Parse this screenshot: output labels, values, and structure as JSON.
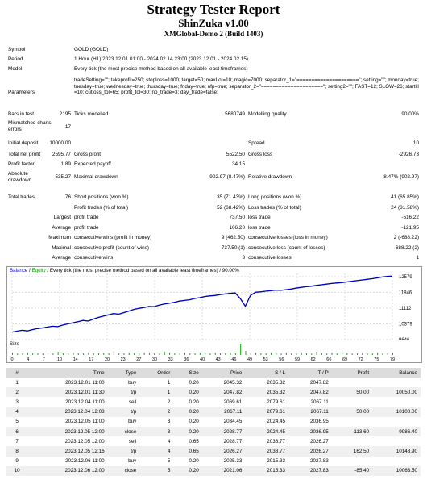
{
  "header": {
    "title": "Strategy Tester Report",
    "expert": "ShinZuka v1.00",
    "server": "XMGlobal-Demo 2 (Build 1403)"
  },
  "settings": [
    {
      "label": "Symbol",
      "value": "GOLD (GOLD)"
    },
    {
      "label": "Period",
      "value": "1 Hour (H1) 2023.12.01 01:00 - 2024.02.14 23:00 (2023.12.01 - 2024.02.15)"
    },
    {
      "label": "Model",
      "value": "Every tick (the most precise method based on all available least timeframes)"
    }
  ],
  "parameters": {
    "label": "Parameters",
    "text": "tradeSetting=\"\"; takeprofit=250; stoploss=1000; target=50; maxLot=10; magic=7000; separator_1=\"=====================\"; setting=\"\"; monday=true; tuesday=true; wednesday=true; thursday=true; friday=true; nfp=true; separator_2=\"=====================\"; setting2=\"\"; FAST=12; SLOW=26; startH=10; cutloss_tol=65; profit_tol=30; no_trade=3; day_trade=false;"
  },
  "stats": {
    "bars_label": "Bars in test",
    "bars_value": "2195",
    "ticks_label": "Ticks modelled",
    "ticks_value": "5680749",
    "quality_label": "Modelling quality",
    "quality_value": "90.00%",
    "mismatch_label": "Mismatched charts errors",
    "mismatch_value": "17",
    "deposit_label": "Initial deposit",
    "deposit_value": "10000.00",
    "spread_label": "Spread",
    "spread_value": "10",
    "net_label": "Total net profit",
    "net_value": "2595.77",
    "gp_label": "Gross profit",
    "gp_value": "5522.50",
    "gl_label": "Gross loss",
    "gl_value": "-2926.73",
    "pf_label": "Profit factor",
    "pf_value": "1.89",
    "ep_label": "Expected payoff",
    "ep_value": "34.15",
    "ad_label": "Absolute drawdown",
    "ad_value": "535.27",
    "md_label": "Maximal drawdown",
    "md_value": "902.97 (8.47%)",
    "rd_label": "Relative drawdown",
    "rd_value": "8.47% (902.97)",
    "tt_label": "Total trades",
    "tt_value": "76",
    "sp_label": "Short positions (won %)",
    "sp_value": "35 (71.43%)",
    "lp_label": "Long positions (won %)",
    "lp_value": "41 (65.85%)",
    "pt_label": "Profit trades (% of total)",
    "pt_value": "52 (68.42%)",
    "lt_label": "Loss trades (% of total)",
    "lt_value": "24 (31.58%)",
    "largest": "Largest",
    "average": "Average",
    "maximum": "Maximum",
    "maximal": "Maximal",
    "lpt_label": "profit trade",
    "lpt_value": "737.50",
    "llt_label": "loss trade",
    "llt_value": "-516.22",
    "apt_label": "profit trade",
    "apt_value": "106.20",
    "alt_label": "loss trade",
    "alt_value": "-121.95",
    "mcw_label": "consecutive wins (profit in money)",
    "mcw_value": "9 (462.50)",
    "mcl_label": "consecutive losses (loss in money)",
    "mcl_value": "2 (-688.22)",
    "mcp_label": "consecutive profit (count of wins)",
    "mcp_value": "737.50 (1)",
    "mcls_label": "consecutive loss (count of losses)",
    "mcls_value": "-688.22 (2)",
    "acw_label": "consecutive wins",
    "acw_value": "3",
    "acl_label": "consecutive losses",
    "acl_value": "1"
  },
  "chart": {
    "legend_balance": "Balance",
    "legend_sep": " / ",
    "legend_equity": "Equity",
    "legend_rest": " / Every tick (the most precise method based on all available least timeframes) / 90.00%",
    "y_ticks": [
      "12579",
      "11846",
      "11112",
      "10379",
      "9646"
    ],
    "size_label": "Size",
    "x_ticks": [
      "0",
      "4",
      "7",
      "10",
      "14",
      "17",
      "20",
      "23",
      "27",
      "30",
      "33",
      "36",
      "40",
      "43",
      "46",
      "49",
      "53",
      "56",
      "59",
      "62",
      "66",
      "69",
      "72",
      "75",
      "79"
    ],
    "equity_curve": [
      10000,
      10040,
      10080,
      10050,
      10110,
      10160,
      10190,
      10230,
      10270,
      10250,
      10320,
      10380,
      10430,
      10480,
      10540,
      10510,
      10600,
      10680,
      10740,
      10800,
      10860,
      10830,
      10900,
      10970,
      11050,
      11100,
      11140,
      11190,
      11180,
      11250,
      11300,
      11340,
      11380,
      11440,
      11470,
      11500,
      11560,
      11600,
      11650,
      11680,
      11700,
      11740,
      11770,
      11800,
      11820,
      11560,
      11200,
      11700,
      11850,
      11870,
      11900,
      11920,
      11950,
      11940,
      11970,
      12000,
      12040,
      12080,
      12110,
      12130,
      12170,
      12200,
      12230,
      12260,
      12280,
      12300,
      12330,
      12360,
      12390,
      12420,
      12450,
      12480,
      12520,
      12560,
      12590,
      12600
    ]
  },
  "table": {
    "headers": [
      "#",
      "Time",
      "Type",
      "Order",
      "Size",
      "Price",
      "S / L",
      "T / P",
      "Profit",
      "Balance"
    ],
    "rows": [
      [
        "1",
        "2023.12.01 11:00",
        "buy",
        "1",
        "0.20",
        "2045.32",
        "2035.32",
        "2047.82",
        "",
        ""
      ],
      [
        "2",
        "2023.12.01 11:30",
        "t/p",
        "1",
        "0.20",
        "2047.82",
        "2035.32",
        "2047.82",
        "50.00",
        "10050.00"
      ],
      [
        "3",
        "2023.12.04 11:00",
        "sell",
        "2",
        "0.20",
        "2069.61",
        "2079.61",
        "2067.11",
        "",
        ""
      ],
      [
        "4",
        "2023.12.04 12:08",
        "t/p",
        "2",
        "0.20",
        "2067.11",
        "2079.61",
        "2067.11",
        "50.00",
        "10100.00"
      ],
      [
        "5",
        "2023.12.05 11:00",
        "buy",
        "3",
        "0.20",
        "2034.45",
        "2024.45",
        "2036.95",
        "",
        ""
      ],
      [
        "6",
        "2023.12.05 12:00",
        "close",
        "3",
        "0.20",
        "2028.77",
        "2024.45",
        "2036.95",
        "-113.60",
        "9986.40"
      ],
      [
        "7",
        "2023.12.05 12:00",
        "sell",
        "4",
        "0.65",
        "2028.77",
        "2038.77",
        "2026.27",
        "",
        ""
      ],
      [
        "8",
        "2023.12.05 12:16",
        "t/p",
        "4",
        "0.65",
        "2026.27",
        "2038.77",
        "2026.27",
        "162.50",
        "10148.90"
      ],
      [
        "9",
        "2023.12.06 11:00",
        "buy",
        "5",
        "0.20",
        "2025.33",
        "2015.33",
        "2027.83",
        "",
        ""
      ],
      [
        "10",
        "2023.12.06 12:00",
        "close",
        "5",
        "0.20",
        "2021.06",
        "2015.33",
        "2027.83",
        "-85.40",
        "10063.50"
      ]
    ]
  }
}
